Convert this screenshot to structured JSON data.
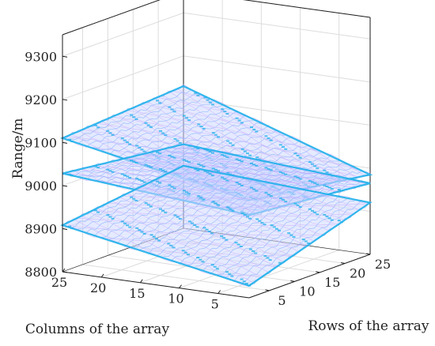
{
  "chart_data": {
    "type": "surface3d",
    "zlabel": "Range/m",
    "xlabel": "Columns of the array",
    "ylabel": "Rows of the array",
    "x_ticks": [
      5,
      10,
      15,
      20,
      25
    ],
    "y_ticks": [
      5,
      10,
      15,
      20,
      25
    ],
    "z_ticks": [
      8800,
      8900,
      9000,
      9100,
      9200,
      9300
    ],
    "xlim": [
      1,
      25
    ],
    "ylim": [
      1,
      25
    ],
    "zlim": [
      8800,
      9350
    ],
    "grid": true,
    "surfaces": [
      {
        "corners": {
          "c1r1": 9026,
          "c25r1": 9110,
          "c1r25": 8985,
          "c25r25": 9130
        },
        "color": "#8ab4ff"
      },
      {
        "corners": {
          "c1r1": 8992,
          "c25r1": 9028,
          "c1r25": 8965,
          "c25r25": 8995
        },
        "color": "#8ab4ff"
      },
      {
        "corners": {
          "c1r1": 8828,
          "c25r1": 8908,
          "c1r25": 8920,
          "c25r25": 8945
        },
        "color": "#8ab4ff"
      }
    ],
    "edge_color": "#1eb0ea",
    "fill_color": "#cfd8ff"
  }
}
